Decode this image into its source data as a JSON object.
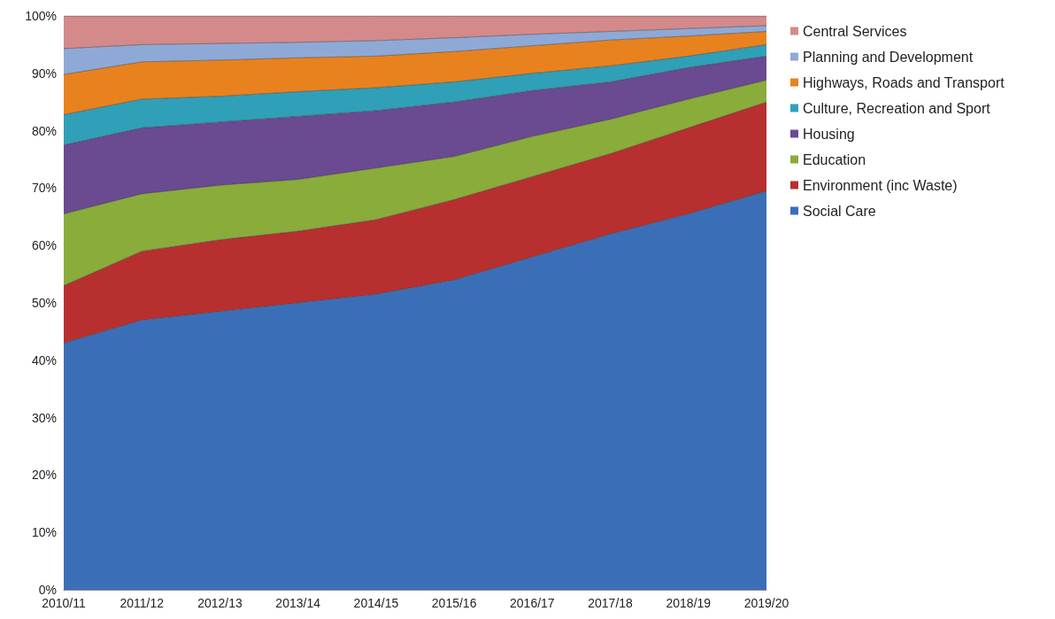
{
  "chart_data": {
    "type": "area",
    "stacked": true,
    "categories": [
      "2010/11",
      "2011/12",
      "2012/13",
      "2013/14",
      "2014/15",
      "2015/16",
      "2016/17",
      "2017/18",
      "2018/19",
      "2019/20"
    ],
    "series": [
      {
        "name": "Social Care",
        "color": "#3a6fb8",
        "values": [
          43,
          47,
          48.5,
          50,
          51.5,
          54,
          58,
          62,
          65.5,
          69.5
        ]
      },
      {
        "name": "Environment (inc Waste)",
        "color": "#b7302f",
        "values": [
          10,
          12,
          12.5,
          12.5,
          13,
          14,
          14,
          14,
          15,
          15.5
        ]
      },
      {
        "name": "Education",
        "color": "#8aac3b",
        "values": [
          12.5,
          10,
          9.5,
          9,
          9,
          7.5,
          7,
          6,
          5,
          3.8
        ]
      },
      {
        "name": "Housing",
        "color": "#6a4a91",
        "values": [
          12,
          11.5,
          11,
          11,
          10,
          9.5,
          8,
          6.5,
          5.5,
          4.2
        ]
      },
      {
        "name": "Culture, Recreation and Sport",
        "color": "#2fa0b8",
        "values": [
          5.3,
          5,
          4.5,
          4.3,
          4,
          3.5,
          3,
          2.8,
          2,
          2
        ]
      },
      {
        "name": "Highways, Roads and Transport",
        "color": "#e8821f",
        "values": [
          7,
          6.5,
          6.3,
          5.9,
          5.5,
          5.3,
          4.8,
          4.5,
          3.5,
          2.3
        ]
      },
      {
        "name": "Planning and Development",
        "color": "#8fa9d6",
        "values": [
          4.5,
          3,
          2.9,
          2.7,
          2.7,
          2.4,
          2,
          1.5,
          1.3,
          1
        ]
      },
      {
        "name": "Central Services",
        "color": "#d48a8a",
        "values": [
          5.7,
          5,
          4.8,
          4.6,
          4.3,
          3.8,
          3.2,
          2.7,
          2.2,
          1.7
        ]
      }
    ],
    "ylim": [
      0,
      100
    ],
    "yticks": [
      {
        "value": 0,
        "label": "0%"
      },
      {
        "value": 10,
        "label": "10%"
      },
      {
        "value": 20,
        "label": "20%"
      },
      {
        "value": 30,
        "label": "30%"
      },
      {
        "value": 40,
        "label": "40%"
      },
      {
        "value": 50,
        "label": "50%"
      },
      {
        "value": 60,
        "label": "60%"
      },
      {
        "value": 70,
        "label": "70%"
      },
      {
        "value": 80,
        "label": "80%"
      },
      {
        "value": 90,
        "label": "90%"
      },
      {
        "value": 100,
        "label": "100%"
      }
    ],
    "grid": false,
    "legend": "right",
    "marker": "none"
  }
}
